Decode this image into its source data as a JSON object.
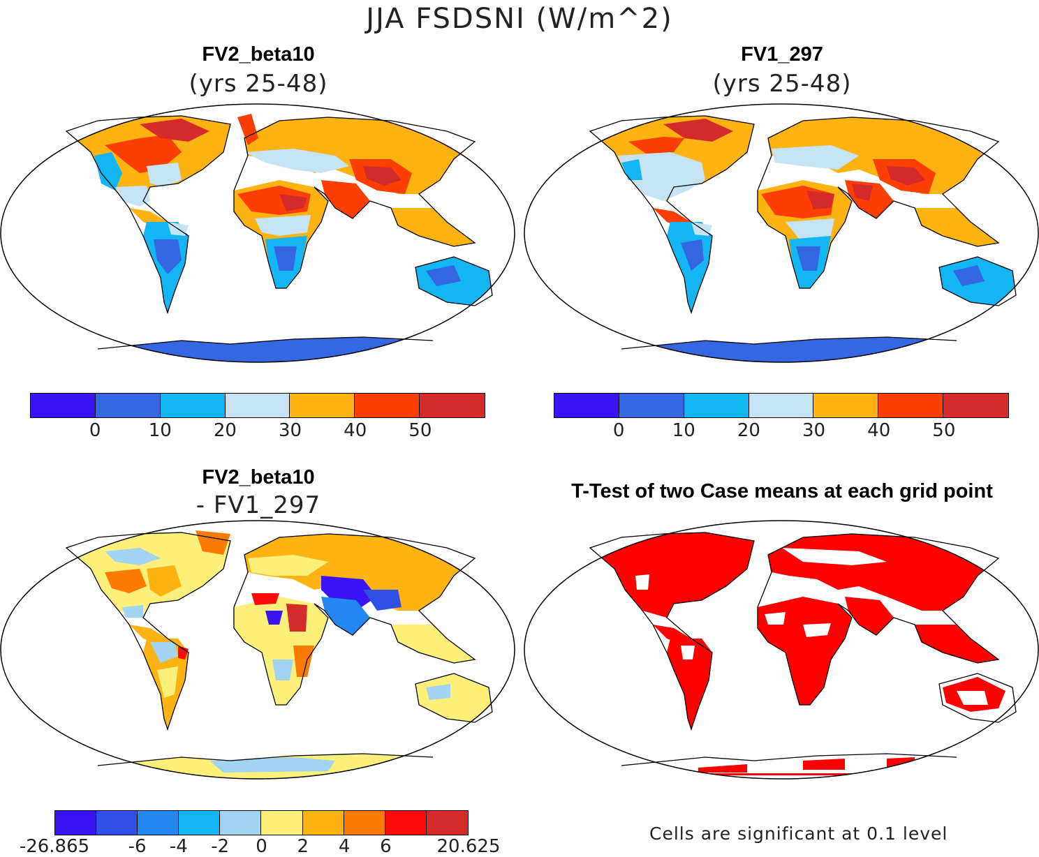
{
  "title": "JJA FSDSNI (W/m^2)",
  "panels": [
    {
      "id": "p1",
      "title": "FV2_beta10",
      "subtitle": "(yrs 25-48)"
    },
    {
      "id": "p2",
      "title": "FV1_297",
      "subtitle": "(yrs 25-48)"
    },
    {
      "id": "p3",
      "title": "FV2_beta10",
      "subtitle": "- FV1_297"
    },
    {
      "id": "p4",
      "title": "T-Test of two Case means at each grid point",
      "subtitle": ""
    }
  ],
  "colorbar_top": {
    "colors": [
      "#3a14f2",
      "#3567e2",
      "#13b5f2",
      "#c6e3f5",
      "#fdb311",
      "#fd3e05",
      "#d42a2a"
    ],
    "labels": [
      "0",
      "10",
      "20",
      "30",
      "40",
      "50"
    ]
  },
  "colorbar_diff": {
    "colors": [
      "#3a14f2",
      "#2f4fe6",
      "#2388f2",
      "#13b5f2",
      "#a3d3f2",
      "#fdf07a",
      "#fdb311",
      "#fd7a05",
      "#fd0a0a",
      "#d42a2a"
    ],
    "labels": [
      "-26.865",
      "-6",
      "-4",
      "-2",
      "0",
      "2",
      "4",
      "6",
      "20.625"
    ]
  },
  "ttest_footnote": "Cells are significant at 0.1 level",
  "colors": {
    "ttest_significant": "#fe0000",
    "outline": "#000000"
  }
}
